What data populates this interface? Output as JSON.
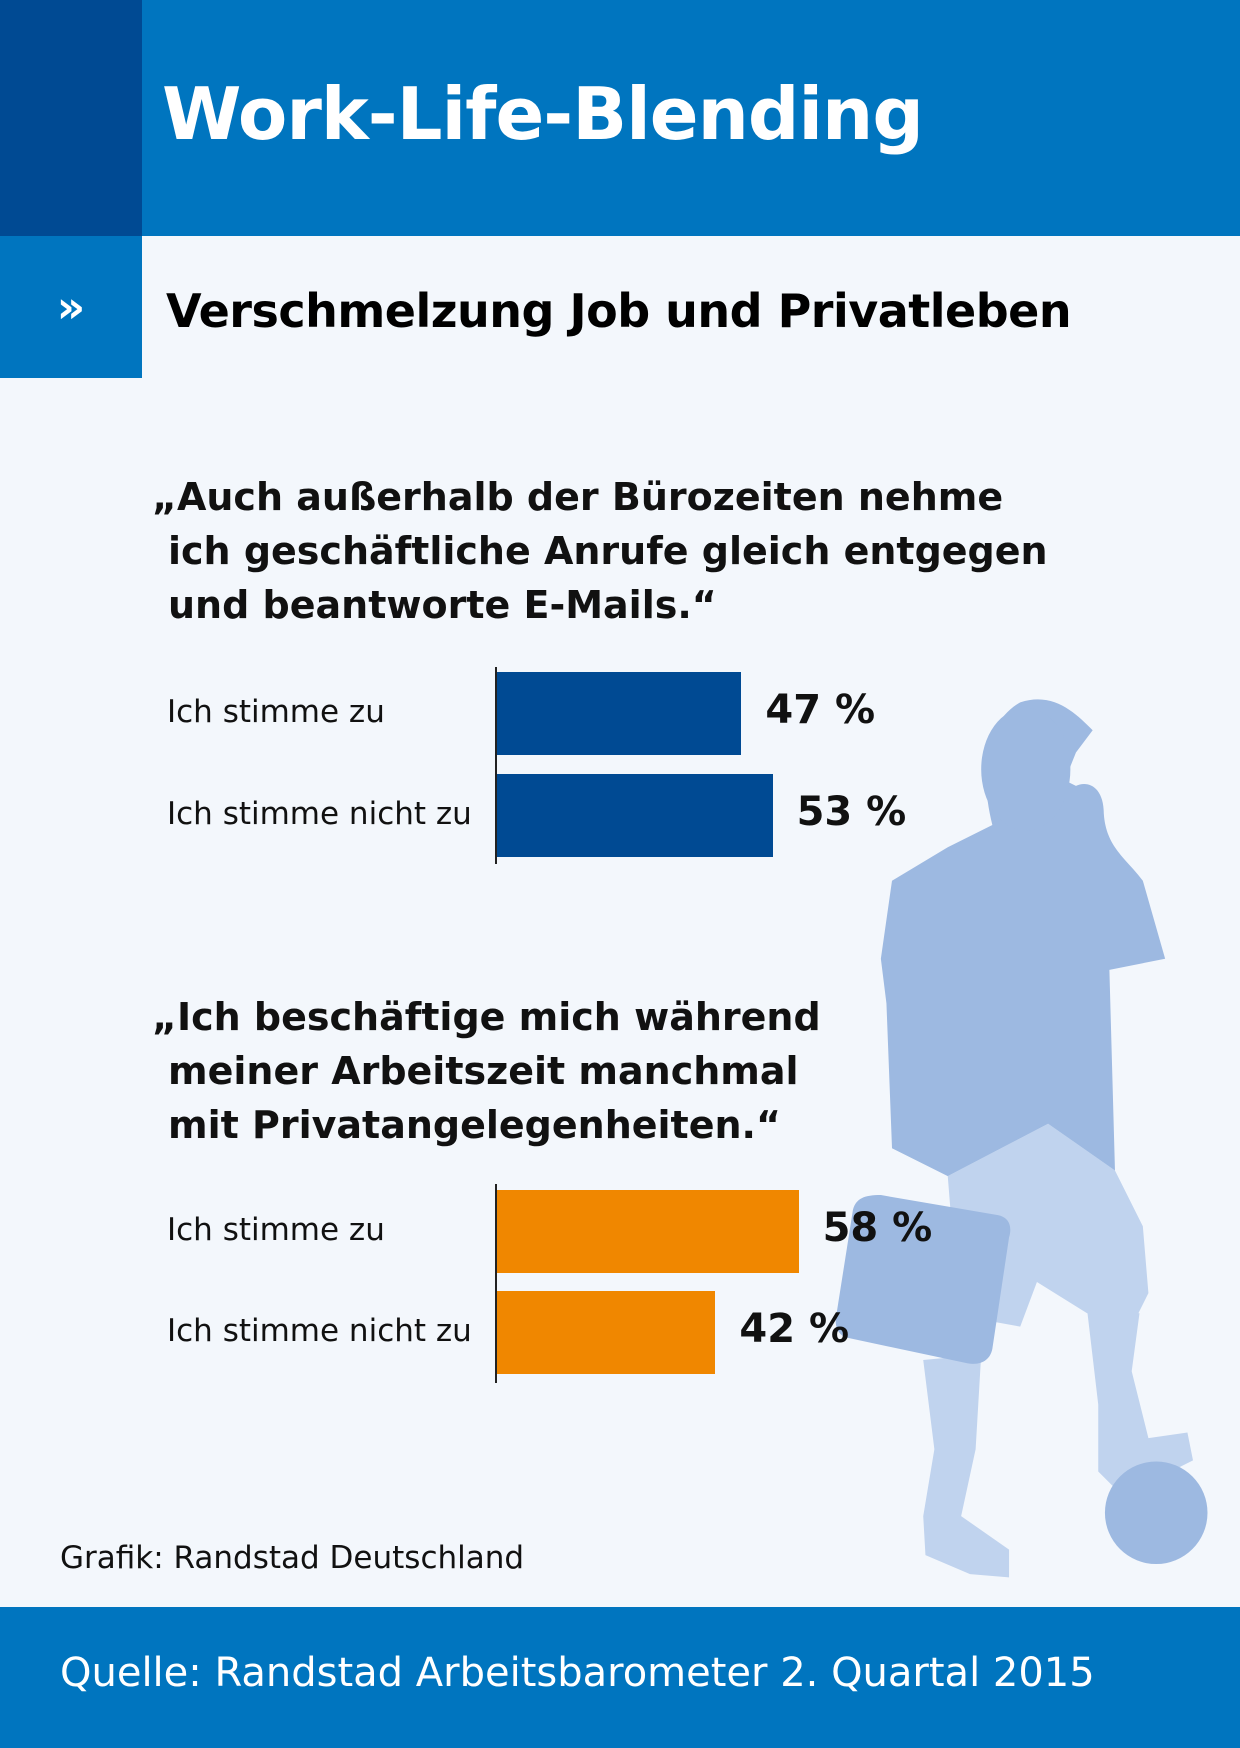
{
  "header": {
    "title": "Work-Life-Blending",
    "chevron_icon": "»"
  },
  "subtitle": "Verschmelzung Job und Privatleben",
  "colors": {
    "header": "#0075BF",
    "header_dark": "#004A93",
    "bar_blue": "#004A93",
    "bar_orange": "#F08700",
    "figure": "#9DB9E1",
    "figure_light": "#C0D3EE"
  },
  "chart_data": [
    {
      "type": "bar",
      "orientation": "horizontal",
      "title_lines": [
        "„Auch außerhalb der Bürozeiten nehme",
        "ich geschäftliche Anrufe gleich entgegen",
        "und beantworte E-Mails.“"
      ],
      "categories": [
        "Ich stimme zu",
        "Ich stimme nicht zu"
      ],
      "values": [
        47,
        53
      ],
      "labels": [
        "47 %",
        "53 %"
      ],
      "unit": "%",
      "xlim": [
        0,
        100
      ],
      "color": "#004A93"
    },
    {
      "type": "bar",
      "orientation": "horizontal",
      "title_lines": [
        "„Ich beschäftige mich während",
        "meiner Arbeitszeit manchmal",
        "mit Privatangelegenheiten.“"
      ],
      "categories": [
        "Ich stimme zu",
        "Ich stimme nicht zu"
      ],
      "values": [
        58,
        42
      ],
      "labels": [
        "58 %",
        "42 %"
      ],
      "unit": "%",
      "xlim": [
        0,
        100
      ],
      "color": "#F08700"
    }
  ],
  "credit": "Grafik: Randstad Deutschland",
  "source": "Quelle: Randstad Arbeitsbarometer 2. Quartal 2015"
}
